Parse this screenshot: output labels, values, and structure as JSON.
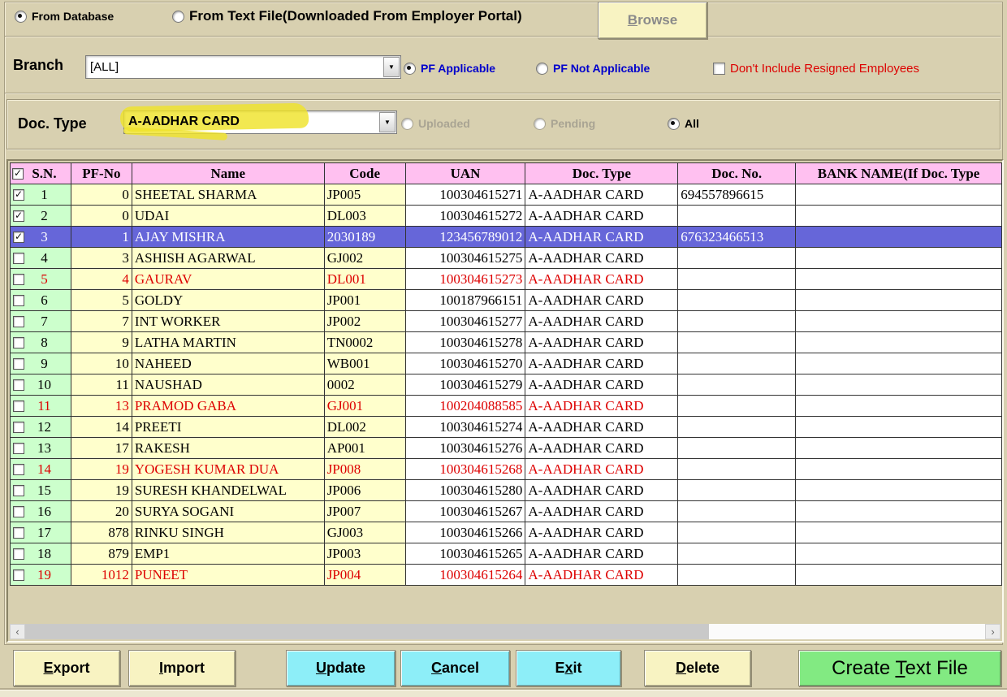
{
  "source": {
    "from_database_label": "From Database",
    "from_textfile_label": "From Text File(Downloaded From Employer Portal)",
    "browse_label": "Browse"
  },
  "filters": {
    "branch_label": "Branch",
    "branch_value": "[ALL]",
    "pf_applicable_label": "PF Applicable",
    "pf_not_applicable_label": "PF Not Applicable",
    "dont_include_resigned_label": "Don't Include Resigned Employees"
  },
  "doc_filter": {
    "doc_type_label": "Doc. Type",
    "doc_type_value": "A-AADHAR CARD",
    "uploaded_label": "Uploaded",
    "pending_label": "Pending",
    "all_label": "All"
  },
  "table": {
    "header_checked": true,
    "columns": [
      "S.N.",
      "PF-No",
      "Name",
      "Code",
      "UAN",
      "Doc. Type",
      "Doc. No.",
      "BANK NAME(If Doc. Type"
    ],
    "rows": [
      {
        "sn": "1",
        "pf_no": "0",
        "name": "SHEETAL SHARMA",
        "code": "JP005",
        "uan": "100304615271",
        "doc_type": "A-AADHAR CARD",
        "doc_no": "694557896615",
        "bank": "",
        "checked": true,
        "state": "normal"
      },
      {
        "sn": "2",
        "pf_no": "0",
        "name": "UDAI",
        "code": "DL003",
        "uan": "100304615272",
        "doc_type": "A-AADHAR CARD",
        "doc_no": "",
        "bank": "",
        "checked": true,
        "state": "normal"
      },
      {
        "sn": "3",
        "pf_no": "1",
        "name": "AJAY MISHRA",
        "code": "2030189",
        "uan": "123456789012",
        "doc_type": "A-AADHAR CARD",
        "doc_no": "676323466513",
        "bank": "",
        "checked": true,
        "state": "selected"
      },
      {
        "sn": "4",
        "pf_no": "3",
        "name": "ASHISH AGARWAL",
        "code": "GJ002",
        "uan": "100304615275",
        "doc_type": "A-AADHAR CARD",
        "doc_no": "",
        "bank": "",
        "checked": false,
        "state": "normal"
      },
      {
        "sn": "5",
        "pf_no": "4",
        "name": "GAURAV",
        "code": "DL001",
        "uan": "100304615273",
        "doc_type": "A-AADHAR CARD",
        "doc_no": "",
        "bank": "",
        "checked": false,
        "state": "red"
      },
      {
        "sn": "6",
        "pf_no": "5",
        "name": "GOLDY",
        "code": "JP001",
        "uan": "100187966151",
        "doc_type": "A-AADHAR CARD",
        "doc_no": "",
        "bank": "",
        "checked": false,
        "state": "normal"
      },
      {
        "sn": "7",
        "pf_no": "7",
        "name": "INT WORKER",
        "code": "JP002",
        "uan": "100304615277",
        "doc_type": "A-AADHAR CARD",
        "doc_no": "",
        "bank": "",
        "checked": false,
        "state": "normal"
      },
      {
        "sn": "8",
        "pf_no": "9",
        "name": "LATHA MARTIN",
        "code": "TN0002",
        "uan": "100304615278",
        "doc_type": "A-AADHAR CARD",
        "doc_no": "",
        "bank": "",
        "checked": false,
        "state": "normal"
      },
      {
        "sn": "9",
        "pf_no": "10",
        "name": "NAHEED",
        "code": "WB001",
        "uan": "100304615270",
        "doc_type": "A-AADHAR CARD",
        "doc_no": "",
        "bank": "",
        "checked": false,
        "state": "normal"
      },
      {
        "sn": "10",
        "pf_no": "11",
        "name": "NAUSHAD",
        "code": "0002",
        "uan": "100304615279",
        "doc_type": "A-AADHAR CARD",
        "doc_no": "",
        "bank": "",
        "checked": false,
        "state": "normal"
      },
      {
        "sn": "11",
        "pf_no": "13",
        "name": "PRAMOD GABA",
        "code": "GJ001",
        "uan": "100204088585",
        "doc_type": "A-AADHAR CARD",
        "doc_no": "",
        "bank": "",
        "checked": false,
        "state": "red"
      },
      {
        "sn": "12",
        "pf_no": "14",
        "name": "PREETI",
        "code": "DL002",
        "uan": "100304615274",
        "doc_type": "A-AADHAR CARD",
        "doc_no": "",
        "bank": "",
        "checked": false,
        "state": "normal"
      },
      {
        "sn": "13",
        "pf_no": "17",
        "name": "RAKESH",
        "code": "AP001",
        "uan": "100304615276",
        "doc_type": "A-AADHAR CARD",
        "doc_no": "",
        "bank": "",
        "checked": false,
        "state": "normal"
      },
      {
        "sn": "14",
        "pf_no": "19",
        "name": "YOGESH KUMAR DUA",
        "code": "JP008",
        "uan": "100304615268",
        "doc_type": "A-AADHAR CARD",
        "doc_no": "",
        "bank": "",
        "checked": false,
        "state": "red"
      },
      {
        "sn": "15",
        "pf_no": "19",
        "name": "SURESH KHANDELWAL",
        "code": "JP006",
        "uan": "100304615280",
        "doc_type": "A-AADHAR CARD",
        "doc_no": "",
        "bank": "",
        "checked": false,
        "state": "normal"
      },
      {
        "sn": "16",
        "pf_no": "20",
        "name": "SURYA SOGANI",
        "code": "JP007",
        "uan": "100304615267",
        "doc_type": "A-AADHAR CARD",
        "doc_no": "",
        "bank": "",
        "checked": false,
        "state": "normal"
      },
      {
        "sn": "17",
        "pf_no": "878",
        "name": "RINKU SINGH",
        "code": "GJ003",
        "uan": "100304615266",
        "doc_type": "A-AADHAR CARD",
        "doc_no": "",
        "bank": "",
        "checked": false,
        "state": "normal"
      },
      {
        "sn": "18",
        "pf_no": "879",
        "name": "EMP1",
        "code": "JP003",
        "uan": "100304615265",
        "doc_type": "A-AADHAR CARD",
        "doc_no": "",
        "bank": "",
        "checked": false,
        "state": "normal"
      },
      {
        "sn": "19",
        "pf_no": "1012",
        "name": "PUNEET",
        "code": "JP004",
        "uan": "100304615264",
        "doc_type": "A-AADHAR CARD",
        "doc_no": "",
        "bank": "",
        "checked": false,
        "state": "red"
      }
    ]
  },
  "buttons": {
    "export_label": "Export",
    "import_label": "Import",
    "update_label": "Update",
    "cancel_label": "Cancel",
    "exit_label": "Exit",
    "delete_label": "Delete",
    "create_text_file_label": "Create Text File"
  },
  "icons": {
    "dropdown": "▼",
    "scroll_left": "‹",
    "scroll_right": "›",
    "check": "✓"
  },
  "colors": {
    "background": "#D8D0B0",
    "header_pink": "#FFC0F0",
    "row_green": "#CCFFCC",
    "row_yellow": "#FFFFCC",
    "selected_blue": "#6666D9",
    "alert_red": "#DD0000",
    "label_blue": "#0000CC",
    "button_yellow": "#F8F3C2",
    "button_cyan": "#8DEEF8",
    "button_green": "#82EA82",
    "highlight_yellow": "#EFE32B"
  }
}
